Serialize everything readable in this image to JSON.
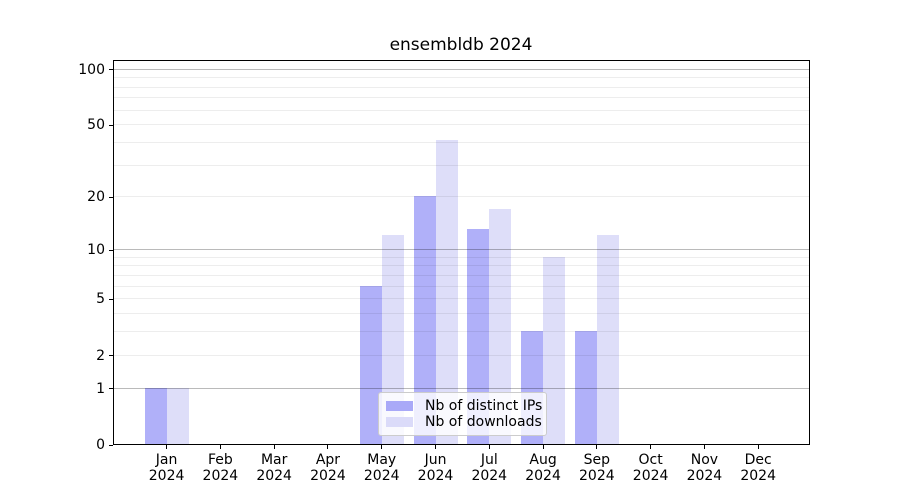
{
  "title": "ensembldb 2024",
  "legend": {
    "items": [
      {
        "label": "Nb of distinct IPs",
        "color": "#a9a9f8"
      },
      {
        "label": "Nb of downloads",
        "color": "#dbdbf9"
      }
    ]
  },
  "chart_data": {
    "type": "bar",
    "title": "ensembldb 2024",
    "categories": [
      "Jan 2024",
      "Feb 2024",
      "Mar 2024",
      "Apr 2024",
      "May 2024",
      "Jun 2024",
      "Jul 2024",
      "Aug 2024",
      "Sep 2024",
      "Oct 2024",
      "Nov 2024",
      "Dec 2024"
    ],
    "series": [
      {
        "name": "Nb of distinct IPs",
        "color": "#a9a9f8",
        "values": [
          1,
          0,
          0,
          0,
          6,
          20,
          13,
          3,
          3,
          0,
          0,
          0
        ]
      },
      {
        "name": "Nb of downloads",
        "color": "#dbdbf9",
        "values": [
          1,
          0,
          0,
          0,
          12,
          41,
          17,
          9,
          12,
          0,
          0,
          0
        ]
      }
    ],
    "xlabel": "",
    "ylabel": "",
    "y_axis": {
      "scale": "log10(1+x)",
      "tick_values": [
        0,
        1,
        2,
        5,
        10,
        20,
        50,
        100
      ],
      "major_gridlines": [
        1,
        10,
        100
      ],
      "minor_gridlines": [
        2,
        3,
        4,
        5,
        6,
        7,
        8,
        9,
        20,
        30,
        40,
        50,
        60,
        70,
        80,
        90
      ],
      "range_top_value": 113
    },
    "grid": true,
    "legend_position": "bottom-center-inside"
  }
}
